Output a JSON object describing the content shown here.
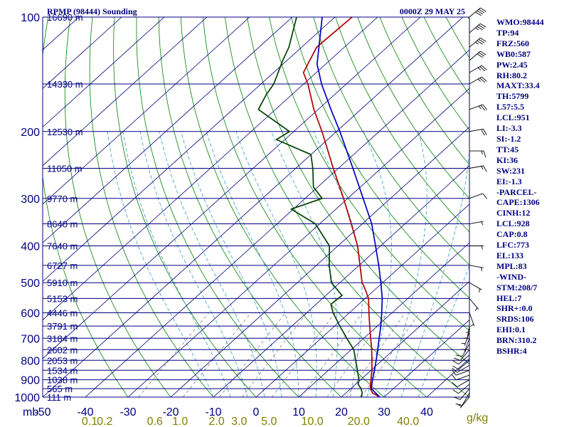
{
  "header": {
    "station": "RPMP (98444) Sounding",
    "datetime": "0000Z 29 MAY 25"
  },
  "indices": [
    "WMO:98444",
    "TP:94",
    "FRZ:560",
    "WB0:587",
    "PW:2.45",
    "RH:80.2",
    "MAXT:33.4",
    "TH:5799",
    "L57:5.5",
    "LCL:951",
    "LI:-3.3",
    "SI:-1.2",
    "TT:45",
    "KI:36",
    "SW:231",
    "EI:-1.3",
    "-PARCEL-",
    "CAPE:1306",
    "CINH:12",
    "LCL:928",
    "CAP:0.8",
    "LFC:773",
    "EL:133",
    "MPL:83",
    "-WIND-",
    "STM:208/7",
    "HEL:7",
    "SHR+:0.0",
    "SRDS:106",
    "EHI:0.1",
    "BRN:310.2",
    "BSHR:4"
  ],
  "colors": {
    "isobar": "#000080",
    "isotherm": "#000080",
    "dry_adiabat": "#008000",
    "mixing_ratio": "#808080",
    "moist_adiabat": "#4aa8c8",
    "temperature": "#b00000",
    "dewpoint": "#004000",
    "parcel": "#0000c0",
    "pressure_label": "#000080",
    "temp_label": "#000080",
    "mixr_label": "#808000"
  },
  "chart_data": {
    "type": "skew-t",
    "pressure_unit_label": "mb",
    "mixing_ratio_unit_label": "g/kg",
    "pressure_range": [
      1000,
      100
    ],
    "temperature_range": [
      -50,
      50
    ],
    "pressure_ticks": [
      {
        "p": 100,
        "label": "100"
      },
      {
        "p": 200,
        "label": "200"
      },
      {
        "p": 300,
        "label": "300"
      },
      {
        "p": 400,
        "label": "400"
      },
      {
        "p": 500,
        "label": "500"
      },
      {
        "p": 600,
        "label": "600"
      },
      {
        "p": 700,
        "label": "700"
      },
      {
        "p": 800,
        "label": "800"
      },
      {
        "p": 900,
        "label": "900"
      },
      {
        "p": 1000,
        "label": "1000"
      }
    ],
    "height_labels": [
      {
        "p": 100,
        "label": "16690 m"
      },
      {
        "p": 150,
        "label": "14330 m"
      },
      {
        "p": 200,
        "label": "12530 m"
      },
      {
        "p": 250,
        "label": "11050 m"
      },
      {
        "p": 300,
        "label": "9770 m"
      },
      {
        "p": 350,
        "label": "8640 m"
      },
      {
        "p": 400,
        "label": "7640 m"
      },
      {
        "p": 450,
        "label": "6727 m"
      },
      {
        "p": 500,
        "label": "5910 m"
      },
      {
        "p": 550,
        "label": "5153 m"
      },
      {
        "p": 600,
        "label": "4446 m"
      },
      {
        "p": 650,
        "label": "3791 m"
      },
      {
        "p": 700,
        "label": "3184 m"
      },
      {
        "p": 750,
        "label": "2602 m"
      },
      {
        "p": 800,
        "label": "2053 m"
      },
      {
        "p": 850,
        "label": "1534 m"
      },
      {
        "p": 900,
        "label": "1038 m"
      },
      {
        "p": 950,
        "label": "565 m"
      },
      {
        "p": 1000,
        "label": "111 m"
      }
    ],
    "temperature_ticks": [
      {
        "t": -50,
        "label": "-50"
      },
      {
        "t": -40,
        "label": "-40"
      },
      {
        "t": -30,
        "label": "-30"
      },
      {
        "t": -20,
        "label": "-20"
      },
      {
        "t": -10,
        "label": "-10"
      },
      {
        "t": 0,
        "label": "0"
      },
      {
        "t": 10,
        "label": "10"
      },
      {
        "t": 20,
        "label": "20"
      },
      {
        "t": 30,
        "label": "30"
      },
      {
        "t": 40,
        "label": "40"
      }
    ],
    "mixing_ratio_ticks": [
      {
        "w": 0.1,
        "label": "0.1"
      },
      {
        "w": 0.2,
        "label": "0.2"
      },
      {
        "w": 0.6,
        "label": "0.6"
      },
      {
        "w": 1.0,
        "label": "1.0"
      },
      {
        "w": 2.0,
        "label": "2.0"
      },
      {
        "w": 3.0,
        "label": "3.0"
      },
      {
        "w": 5.0,
        "label": "5.0"
      },
      {
        "w": 10.0,
        "label": "10.0"
      },
      {
        "w": 20.0,
        "label": "20.0"
      },
      {
        "w": 40.0,
        "label": "40.0"
      }
    ],
    "mixing_ratio_lines": [
      0.4,
      1,
      2,
      3,
      5,
      8,
      12,
      16,
      20
    ],
    "series": [
      {
        "key": "temperature",
        "points": [
          {
            "p": 1000,
            "t": 29.0
          },
          {
            "p": 975,
            "t": 26.2
          },
          {
            "p": 950,
            "t": 24.6
          },
          {
            "p": 925,
            "t": 23.5
          },
          {
            "p": 900,
            "t": 22.4
          },
          {
            "p": 850,
            "t": 20.2
          },
          {
            "p": 800,
            "t": 17.6
          },
          {
            "p": 750,
            "t": 14.8
          },
          {
            "p": 700,
            "t": 11.6
          },
          {
            "p": 650,
            "t": 8.2
          },
          {
            "p": 600,
            "t": 4.6
          },
          {
            "p": 550,
            "t": 0.8
          },
          {
            "p": 520,
            "t": -2.4
          },
          {
            "p": 500,
            "t": -4.8
          },
          {
            "p": 450,
            "t": -9.8
          },
          {
            "p": 400,
            "t": -15.4
          },
          {
            "p": 350,
            "t": -22.6
          },
          {
            "p": 300,
            "t": -31.0
          },
          {
            "p": 250,
            "t": -41.2
          },
          {
            "p": 200,
            "t": -53.4
          },
          {
            "p": 175,
            "t": -61.0
          },
          {
            "p": 150,
            "t": -69.0
          },
          {
            "p": 140,
            "t": -73.0
          },
          {
            "p": 120,
            "t": -76.5
          },
          {
            "p": 100,
            "t": -76.0
          }
        ]
      },
      {
        "key": "dewpoint",
        "points": [
          {
            "p": 1000,
            "t": 24.6
          },
          {
            "p": 975,
            "t": 23.8
          },
          {
            "p": 950,
            "t": 22.4
          },
          {
            "p": 925,
            "t": 20.6
          },
          {
            "p": 900,
            "t": 19.6
          },
          {
            "p": 850,
            "t": 16.8
          },
          {
            "p": 800,
            "t": 13.8
          },
          {
            "p": 750,
            "t": 10.6
          },
          {
            "p": 700,
            "t": 6.0
          },
          {
            "p": 650,
            "t": 1.2
          },
          {
            "p": 600,
            "t": -3.8
          },
          {
            "p": 570,
            "t": -6.5
          },
          {
            "p": 540,
            "t": -6.2
          },
          {
            "p": 500,
            "t": -12.0
          },
          {
            "p": 450,
            "t": -17.0
          },
          {
            "p": 400,
            "t": -22.0
          },
          {
            "p": 350,
            "t": -31.0
          },
          {
            "p": 320,
            "t": -40.5
          },
          {
            "p": 300,
            "t": -36.0
          },
          {
            "p": 280,
            "t": -41.0
          },
          {
            "p": 250,
            "t": -46.0
          },
          {
            "p": 230,
            "t": -50.0
          },
          {
            "p": 210,
            "t": -62.0
          },
          {
            "p": 200,
            "t": -61.0
          },
          {
            "p": 175,
            "t": -74.0
          },
          {
            "p": 160,
            "t": -76.0
          },
          {
            "p": 150,
            "t": -77.0
          },
          {
            "p": 130,
            "t": -81.0
          },
          {
            "p": 120,
            "t": -83.0
          },
          {
            "p": 100,
            "t": -89.0
          }
        ]
      },
      {
        "key": "parcel",
        "points": [
          {
            "p": 1000,
            "t": 29.0
          },
          {
            "p": 950,
            "t": 24.8
          },
          {
            "p": 900,
            "t": 22.8
          },
          {
            "p": 850,
            "t": 20.8
          },
          {
            "p": 800,
            "t": 18.6
          },
          {
            "p": 750,
            "t": 16.2
          },
          {
            "p": 700,
            "t": 13.6
          },
          {
            "p": 650,
            "t": 10.8
          },
          {
            "p": 600,
            "t": 7.6
          },
          {
            "p": 550,
            "t": 4.0
          },
          {
            "p": 500,
            "t": -0.4
          },
          {
            "p": 450,
            "t": -5.4
          },
          {
            "p": 400,
            "t": -11.2
          },
          {
            "p": 350,
            "t": -17.8
          },
          {
            "p": 300,
            "t": -26.4
          },
          {
            "p": 250,
            "t": -36.6
          },
          {
            "p": 200,
            "t": -49.2
          },
          {
            "p": 175,
            "t": -57.0
          },
          {
            "p": 150,
            "t": -65.8
          },
          {
            "p": 133,
            "t": -72.0
          },
          {
            "p": 100,
            "t": -83.0
          }
        ]
      }
    ],
    "wind_barbs": [
      {
        "p": 1000,
        "dir": 220,
        "spd": 5
      },
      {
        "p": 975,
        "dir": 210,
        "spd": 10
      },
      {
        "p": 950,
        "dir": 220,
        "spd": 10
      },
      {
        "p": 925,
        "dir": 230,
        "spd": 10
      },
      {
        "p": 900,
        "dir": 240,
        "spd": 10
      },
      {
        "p": 875,
        "dir": 250,
        "spd": 10
      },
      {
        "p": 850,
        "dir": 250,
        "spd": 10
      },
      {
        "p": 825,
        "dir": 240,
        "spd": 10
      },
      {
        "p": 800,
        "dir": 230,
        "spd": 10
      },
      {
        "p": 775,
        "dir": 230,
        "spd": 10
      },
      {
        "p": 750,
        "dir": 220,
        "spd": 10
      },
      {
        "p": 725,
        "dir": 210,
        "spd": 10
      },
      {
        "p": 700,
        "dir": 200,
        "spd": 5
      },
      {
        "p": 675,
        "dir": 200,
        "spd": 5
      },
      {
        "p": 650,
        "dir": 190,
        "spd": 5
      },
      {
        "p": 625,
        "dir": 180,
        "spd": 5
      },
      {
        "p": 600,
        "dir": 160,
        "spd": 5
      },
      {
        "p": 550,
        "dir": 140,
        "spd": 5
      },
      {
        "p": 500,
        "dir": 120,
        "spd": 5
      },
      {
        "p": 450,
        "dir": 100,
        "spd": 5
      },
      {
        "p": 400,
        "dir": 90,
        "spd": 5
      },
      {
        "p": 350,
        "dir": 80,
        "spd": 5
      },
      {
        "p": 300,
        "dir": 70,
        "spd": 10
      },
      {
        "p": 250,
        "dir": 80,
        "spd": 15
      },
      {
        "p": 225,
        "dir": 90,
        "spd": 15
      },
      {
        "p": 200,
        "dir": 80,
        "spd": 20
      },
      {
        "p": 175,
        "dir": 70,
        "spd": 25
      },
      {
        "p": 150,
        "dir": 60,
        "spd": 25
      },
      {
        "p": 140,
        "dir": 60,
        "spd": 25
      },
      {
        "p": 130,
        "dir": 50,
        "spd": 30
      },
      {
        "p": 120,
        "dir": 50,
        "spd": 35
      },
      {
        "p": 110,
        "dir": 50,
        "spd": 35
      },
      {
        "p": 100,
        "dir": 50,
        "spd": 40
      }
    ]
  }
}
